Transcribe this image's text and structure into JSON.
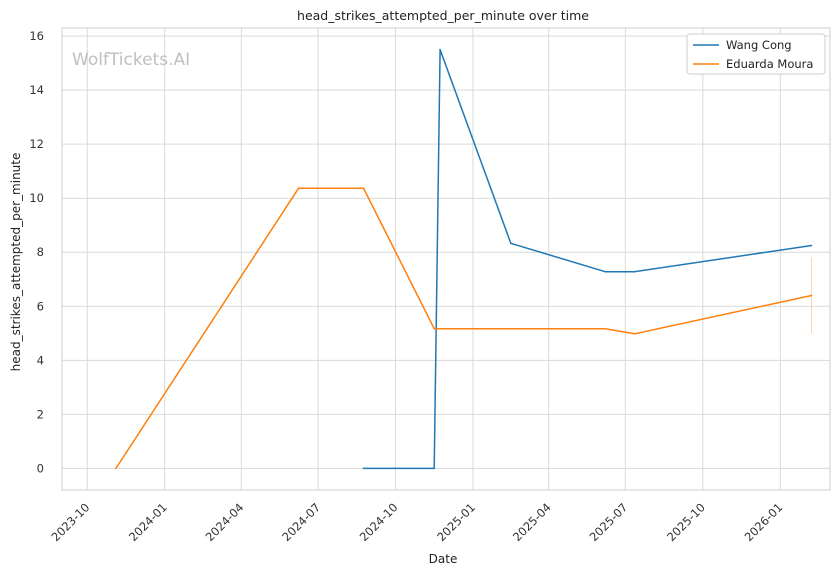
{
  "chart_data": {
    "type": "line",
    "title": "head_strikes_attempted_per_minute over time",
    "xlabel": "Date",
    "ylabel": "head_strikes_attempted_per_minute",
    "watermark": "WolfTickets.AI",
    "grid": true,
    "legend_position": "top-right",
    "xlim": [
      "2023-09-01",
      "2026-03-01"
    ],
    "ylim": [
      -0.8,
      16.3
    ],
    "x_ticks": [
      "2023-10",
      "2024-01",
      "2024-04",
      "2024-07",
      "2024-10",
      "2025-01",
      "2025-04",
      "2025-07",
      "2025-10",
      "2026-01"
    ],
    "x_tick_dates": [
      "2023-10-01",
      "2024-01-01",
      "2024-04-01",
      "2024-07-01",
      "2024-10-01",
      "2025-01-01",
      "2025-04-01",
      "2025-07-01",
      "2025-10-01",
      "2026-01-01"
    ],
    "y_ticks": [
      0,
      2,
      4,
      6,
      8,
      10,
      12,
      14,
      16
    ],
    "series": [
      {
        "name": "Wang Cong",
        "color": "#1f77b4",
        "points": [
          {
            "x": "2024-08-24",
            "y": 0
          },
          {
            "x": "2024-11-16",
            "y": 0
          },
          {
            "x": "2024-11-23",
            "y": 15.5
          },
          {
            "x": "2025-02-15",
            "y": 8.33
          },
          {
            "x": "2025-06-07",
            "y": 7.28
          },
          {
            "x": "2025-07-12",
            "y": 7.28
          },
          {
            "x": "2026-02-07",
            "y": 8.25
          }
        ]
      },
      {
        "name": "Eduarda Moura",
        "color": "#ff7f0e",
        "points": [
          {
            "x": "2023-11-04",
            "y": 0
          },
          {
            "x": "2024-06-08",
            "y": 10.37
          },
          {
            "x": "2024-08-24",
            "y": 10.37
          },
          {
            "x": "2024-11-16",
            "y": 5.17
          },
          {
            "x": "2025-06-07",
            "y": 5.17
          },
          {
            "x": "2025-07-12",
            "y": 4.98
          },
          {
            "x": "2026-02-07",
            "y": 6.4
          }
        ]
      }
    ],
    "error_band": {
      "x": "2026-02-07",
      "y_low": 5.0,
      "y_high": 7.8,
      "color": "#ff7f0e"
    }
  }
}
